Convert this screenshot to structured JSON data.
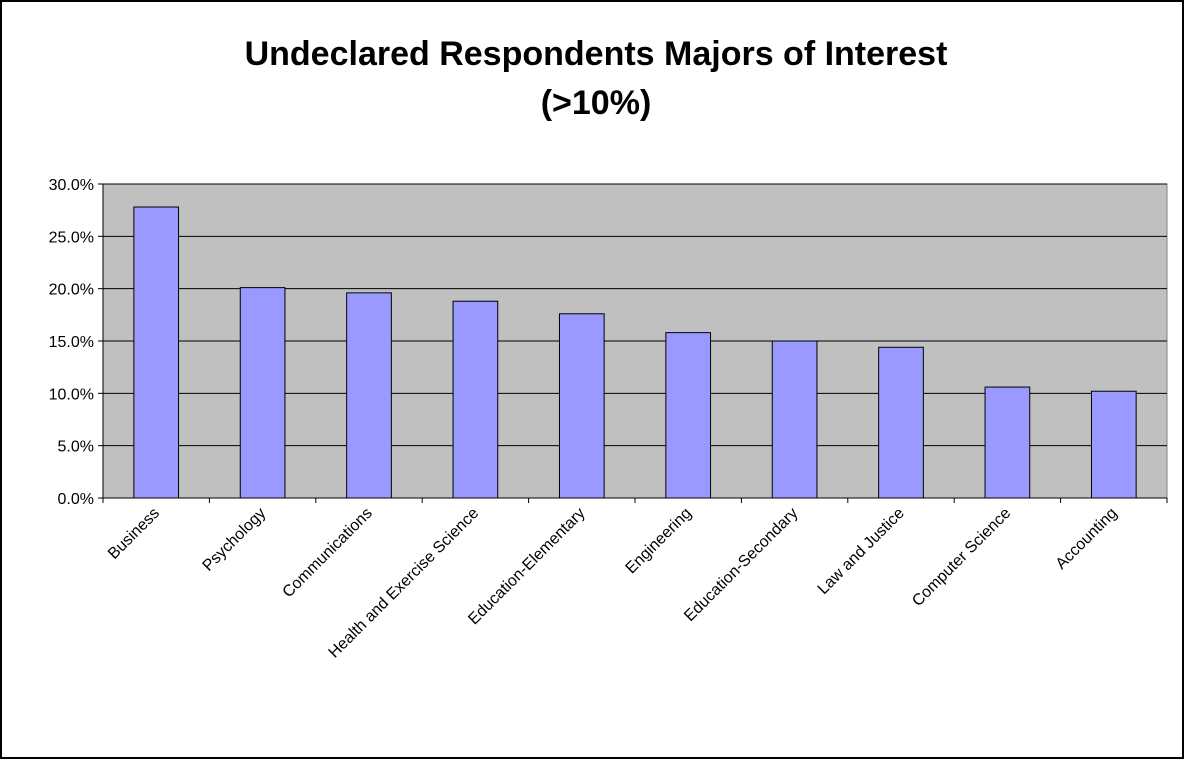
{
  "chart_data": {
    "type": "bar",
    "title": [
      "Undeclared Respondents Majors of Interest",
      "(>10%)"
    ],
    "categories": [
      "Business",
      "Psychology",
      "Communications",
      "Health and Exercise Science",
      "Education-Elementary",
      "Engineering",
      "Education-Secondary",
      "Law and Justice",
      "Computer Science",
      "Accounting"
    ],
    "values": [
      27.8,
      20.1,
      19.6,
      18.8,
      17.6,
      15.8,
      15.0,
      14.4,
      10.6,
      10.2
    ],
    "color": "#9999ff",
    "ylim": [
      0,
      30
    ],
    "yticks": [
      {
        "value": 0,
        "label": "0.0%"
      },
      {
        "value": 5,
        "label": "5.0%"
      },
      {
        "value": 10,
        "label": "10.0%"
      },
      {
        "value": 15,
        "label": "15.0%"
      },
      {
        "value": 20,
        "label": "20.0%"
      },
      {
        "value": 25,
        "label": "25.0%"
      },
      {
        "value": 30,
        "label": "30.0%"
      }
    ],
    "grid": true
  }
}
